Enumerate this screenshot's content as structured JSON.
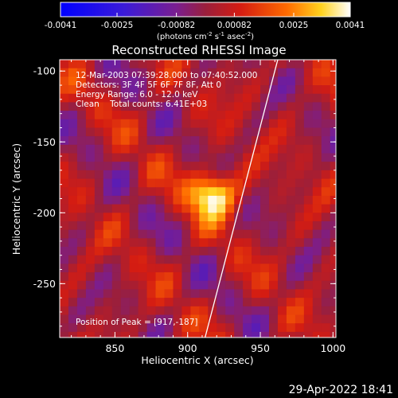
{
  "chart_data": {
    "type": "heatmap",
    "title": "Reconstructed RHESSI Image",
    "xlabel": "Heliocentric X (arcsec)",
    "ylabel": "Heliocentric Y (arcsec)",
    "xlim": [
      812,
      1002
    ],
    "ylim": [
      -288,
      -92
    ],
    "x_ticks": [
      850,
      900,
      950,
      1000
    ],
    "y_ticks": [
      -100,
      -150,
      -200,
      -250
    ],
    "colorbar": {
      "range": [
        -0.0041,
        0.0041
      ],
      "tick_labels": [
        "-0.0041",
        "-0.0025",
        "-0.00082",
        "0.00082",
        "0.0025",
        "0.0041"
      ],
      "tick_values": [
        -0.0041,
        -0.0025,
        -0.00082,
        0.00082,
        0.0025,
        0.0041
      ],
      "units_prefix": "(photons cm",
      "units_sup1": "-2",
      "units_mid": " s",
      "units_sup2": "-1",
      "units_mid2": " asec",
      "units_sup3": "-2",
      "units_suffix": ")"
    },
    "annotations": {
      "time": "12-Mar-2003 07:39:28.000 to 07:40:52.000",
      "detectors": "Detectors: 3F 4F 5F 6F 7F 8F, Att 0",
      "energy": "Energy Range: 6.0 - 12.0 keV",
      "clean": "Clean    Total counts: 6.41E+03",
      "peak": "Position of Peak = [917,-187]"
    },
    "peak": {
      "x": 917,
      "y": -187,
      "value": 0.0041
    },
    "limb_line": [
      [
        912,
        -288
      ],
      [
        962,
        -92
      ]
    ],
    "footer_date": "29-Apr-2022 18:41"
  }
}
